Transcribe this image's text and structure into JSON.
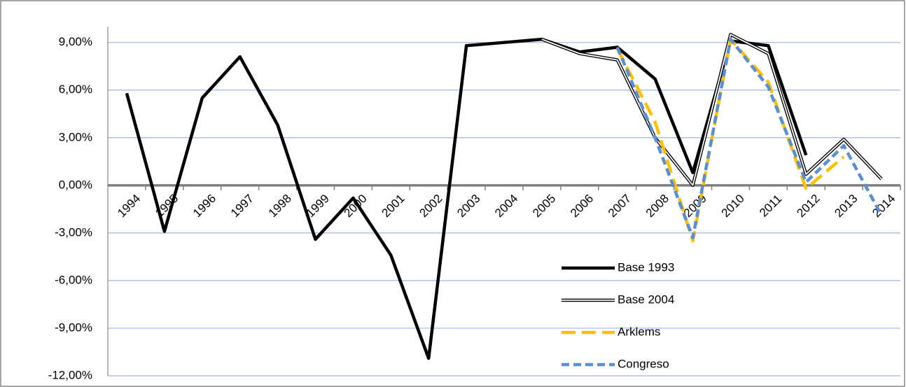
{
  "chart_data": {
    "type": "line",
    "categories": [
      "1994",
      "1995",
      "1996",
      "1997",
      "1998",
      "1999",
      "2000",
      "2001",
      "2002",
      "2003",
      "2004",
      "2005",
      "2006",
      "2007",
      "2008",
      "2009",
      "2010",
      "2011",
      "2012",
      "2013",
      "2014"
    ],
    "series": [
      {
        "name": "Base 1993",
        "color": "#000000",
        "style": "thick",
        "values": [
          5.8,
          -2.9,
          5.5,
          8.1,
          3.8,
          -3.4,
          -0.8,
          -4.4,
          -10.9,
          8.8,
          9.0,
          9.2,
          8.4,
          8.7,
          6.7,
          0.8,
          9.1,
          8.8,
          1.9,
          null,
          null
        ]
      },
      {
        "name": "Base 2004",
        "color": "#000000",
        "style": "double",
        "values": [
          null,
          null,
          null,
          null,
          null,
          null,
          null,
          null,
          null,
          null,
          null,
          9.2,
          8.3,
          7.9,
          3.0,
          0.0,
          9.5,
          8.3,
          0.7,
          2.9,
          0.4
        ]
      },
      {
        "name": "Arklems",
        "color": "#ffc000",
        "style": "long-dash",
        "values": [
          null,
          null,
          null,
          null,
          null,
          null,
          null,
          null,
          null,
          null,
          null,
          null,
          null,
          8.6,
          4.0,
          -3.5,
          9.2,
          6.5,
          -0.2,
          1.8,
          null
        ]
      },
      {
        "name": "Congreso",
        "color": "#5b8fd0",
        "style": "dash",
        "values": [
          null,
          null,
          null,
          null,
          null,
          null,
          null,
          null,
          null,
          null,
          null,
          null,
          null,
          8.7,
          3.0,
          -3.3,
          9.2,
          6.2,
          0.2,
          2.5,
          -1.9
        ]
      }
    ],
    "ylim": [
      -12,
      10
    ],
    "yticks": [
      {
        "value": -12,
        "label": "-12,00%"
      },
      {
        "value": -9,
        "label": "-9,00%"
      },
      {
        "value": -6,
        "label": "-6,00%"
      },
      {
        "value": -3,
        "label": "-3,00%"
      },
      {
        "value": 0,
        "label": "0,00%"
      },
      {
        "value": 3,
        "label": "3,00%"
      },
      {
        "value": 6,
        "label": "6,00%"
      },
      {
        "value": 9,
        "label": "9,00%"
      }
    ],
    "grid": true,
    "legend": "lower-right"
  }
}
